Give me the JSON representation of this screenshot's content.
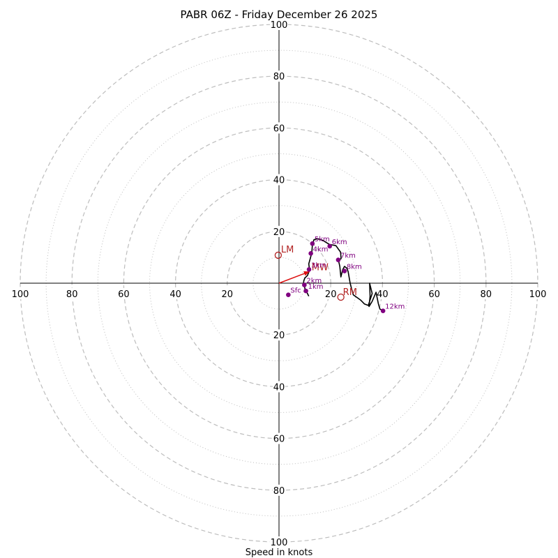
{
  "chart_data": {
    "type": "hodograph",
    "title": "PABR 06Z - Friday December 26 2025",
    "xlabel": "Speed in knots",
    "rlim": [
      0,
      100
    ],
    "ring_major": [
      20,
      40,
      60,
      80,
      100
    ],
    "ring_minor": [
      10,
      30,
      50,
      70,
      90
    ],
    "tick_values": [
      20,
      40,
      60,
      80,
      100
    ],
    "tick_labels": [
      "20",
      "40",
      "60",
      "80",
      "100"
    ],
    "colors": {
      "trace": "#000000",
      "height_marker": "#800080",
      "motion": "#b22222",
      "shear_vector": "#dd1111",
      "grid": "#bdbdbd",
      "axis": "#000000"
    },
    "trace": [
      [
        11.5,
        -5
      ],
      [
        10,
        -2
      ],
      [
        9.8,
        -1
      ],
      [
        9.5,
        0
      ],
      [
        9.6,
        1
      ],
      [
        10,
        2
      ],
      [
        11,
        3
      ],
      [
        11.8,
        5
      ],
      [
        11.5,
        7.5
      ],
      [
        12.2,
        10
      ],
      [
        12.7,
        12
      ],
      [
        12.9,
        15
      ],
      [
        13.5,
        16.8
      ],
      [
        15,
        17.2
      ],
      [
        17,
        16.5
      ],
      [
        19.5,
        15
      ],
      [
        22,
        14.5
      ],
      [
        23.8,
        12
      ],
      [
        24,
        9.5
      ],
      [
        23,
        8.8
      ],
      [
        23.5,
        6.5
      ],
      [
        23.9,
        2.4
      ],
      [
        24.6,
        5.2
      ],
      [
        25.3,
        6.5
      ],
      [
        26.2,
        5.8
      ],
      [
        26.7,
        4.5
      ],
      [
        27.5,
        0
      ],
      [
        28,
        -2
      ],
      [
        28.7,
        -4.5
      ],
      [
        31.5,
        -6.5
      ],
      [
        33,
        -8
      ],
      [
        34.5,
        -8.6
      ],
      [
        36,
        -4
      ],
      [
        35,
        0
      ],
      [
        35.2,
        -5
      ],
      [
        34.8,
        -9
      ],
      [
        36,
        -7
      ],
      [
        37.5,
        -3.5
      ],
      [
        38.4,
        -8
      ],
      [
        39,
        -10
      ],
      [
        40.2,
        -10.7
      ]
    ],
    "height_points": [
      {
        "label": "Sfc",
        "u": 3.6,
        "v": -4.5
      },
      {
        "label": "1km",
        "u": 10.4,
        "v": -3.0
      },
      {
        "label": "2km",
        "u": 9.8,
        "v": -0.7
      },
      {
        "label": "3km",
        "u": 11.6,
        "v": 5.3
      },
      {
        "label": "4km",
        "u": 12.3,
        "v": 11.5
      },
      {
        "label": "5km",
        "u": 12.9,
        "v": 15.3
      },
      {
        "label": "6km",
        "u": 19.6,
        "v": 14.3
      },
      {
        "label": "7km",
        "u": 22.9,
        "v": 9.0
      },
      {
        "label": "8km",
        "u": 25.3,
        "v": 4.7
      },
      {
        "label": "12km",
        "u": 40.2,
        "v": -10.7
      }
    ],
    "storm_motion": [
      {
        "label": "LM",
        "u": -0.3,
        "v": 10.8
      },
      {
        "label": "RM",
        "u": 23.9,
        "v": -5.4
      },
      {
        "label": "MW",
        "u": 11.8,
        "v": 4.5
      }
    ],
    "shear_vector": {
      "from": [
        0,
        0
      ],
      "to": [
        11.8,
        4.5
      ]
    }
  }
}
